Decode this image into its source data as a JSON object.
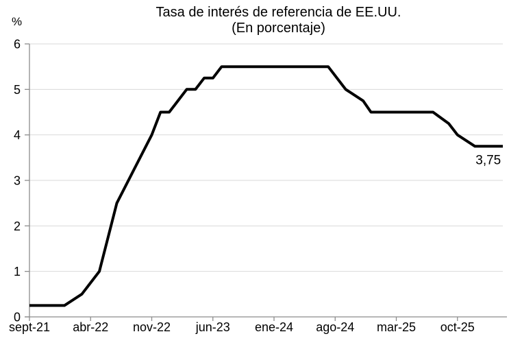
{
  "figure": {
    "title_line1": "Tasa de interés de referencia de EE.UU.",
    "title_line2": "(En porcentaje)",
    "y_unit_label": "%",
    "last_value_label": "3,75"
  },
  "colors": {
    "line": "#000000",
    "gridline": "#d9d9d9",
    "axis": "#8c8c8c",
    "text": "#000000",
    "background": "#ffffff"
  },
  "chart_data": {
    "type": "line",
    "title": "Tasa de interés de referencia de EE.UU.",
    "subtitle": "(En porcentaje)",
    "series_name": "Tasa de interés de referencia de EE.UU.",
    "unit": "%",
    "ylim": [
      0,
      6
    ],
    "y_ticks": [
      0,
      1,
      2,
      3,
      4,
      5,
      6
    ],
    "grid": "horizontal-light",
    "legend": "none",
    "x_ticks": [
      {
        "label": "sept-21",
        "m": 0
      },
      {
        "label": "abr-22",
        "m": 7
      },
      {
        "label": "nov-22",
        "m": 14
      },
      {
        "label": "jun-23",
        "m": 21
      },
      {
        "label": "ene-24",
        "m": 28
      },
      {
        "label": "ago-24",
        "m": 35
      },
      {
        "label": "mar-25",
        "m": 42
      },
      {
        "label": "oct-25",
        "m": 49
      }
    ],
    "x_months_span": 54.2,
    "points": [
      {
        "date": "sep-21",
        "m": 0,
        "v": 0.25
      },
      {
        "date": "ene-22",
        "m": 4,
        "v": 0.25
      },
      {
        "date": "mar-22",
        "m": 6,
        "v": 0.5
      },
      {
        "date": "may-22",
        "m": 8,
        "v": 1.0
      },
      {
        "date": "jun-22",
        "m": 9,
        "v": 1.75
      },
      {
        "date": "jul-22",
        "m": 10,
        "v": 2.5
      },
      {
        "date": "sep-22",
        "m": 12,
        "v": 3.25
      },
      {
        "date": "nov-22",
        "m": 14,
        "v": 4.0
      },
      {
        "date": "dic-22",
        "m": 15,
        "v": 4.5
      },
      {
        "date": "ene-23",
        "m": 16,
        "v": 4.5
      },
      {
        "date": "feb-23",
        "m": 17,
        "v": 4.75
      },
      {
        "date": "mar-23",
        "m": 18,
        "v": 5.0
      },
      {
        "date": "abr-23",
        "m": 19,
        "v": 5.0
      },
      {
        "date": "may-23",
        "m": 20,
        "v": 5.25
      },
      {
        "date": "jun-23",
        "m": 21,
        "v": 5.25
      },
      {
        "date": "jul-23",
        "m": 22,
        "v": 5.5
      },
      {
        "date": "ago-24",
        "m": 34.2,
        "v": 5.5
      },
      {
        "date": "sep-24",
        "m": 36.2,
        "v": 5.0
      },
      {
        "date": "nov-24",
        "m": 38.2,
        "v": 4.75
      },
      {
        "date": "dic-24",
        "m": 39.1,
        "v": 4.5
      },
      {
        "date": "jul-25",
        "m": 46.2,
        "v": 4.5
      },
      {
        "date": "sep-25",
        "m": 48,
        "v": 4.25
      },
      {
        "date": "oct-25",
        "m": 49,
        "v": 4.0
      },
      {
        "date": "dic-25",
        "m": 51,
        "v": 3.75
      }
    ],
    "extend_last_value_to_edge": true,
    "last_point_annotation": "3,75"
  }
}
